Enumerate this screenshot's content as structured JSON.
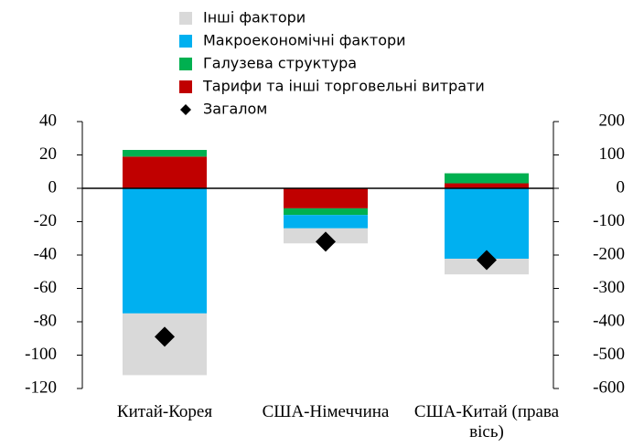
{
  "chart_data": {
    "type": "stacked_bar",
    "categories": [
      "Китай-Корея",
      "США-Німеччина",
      "США-Китай (права вісь)"
    ],
    "axes": [
      "y",
      "y",
      "y2"
    ],
    "series": [
      {
        "name": "Інші фактори",
        "color": "#d9d9d9",
        "values": [
          -37,
          -9,
          -47
        ]
      },
      {
        "name": "Макроекономічні фактори",
        "color": "#00b0f0",
        "values": [
          -75,
          -8,
          -211
        ]
      },
      {
        "name": "Галузева структура",
        "color": "#00b050",
        "values": [
          4,
          -4,
          30
        ]
      },
      {
        "name": "Тарифи та інші торговельні витрати",
        "color": "#c00000",
        "values": [
          19,
          -12,
          15
        ]
      }
    ],
    "total": {
      "name": "Загалом",
      "color": "#000000",
      "values": [
        -89,
        -32,
        -215
      ]
    },
    "ylim": [
      -120,
      40
    ],
    "yticks": [
      -120,
      -100,
      -80,
      -60,
      -40,
      -20,
      0,
      20,
      40
    ],
    "y2lim": [
      -600,
      200
    ],
    "y2ticks": [
      -600,
      -500,
      -400,
      -300,
      -200,
      -100,
      0,
      100,
      200
    ]
  }
}
